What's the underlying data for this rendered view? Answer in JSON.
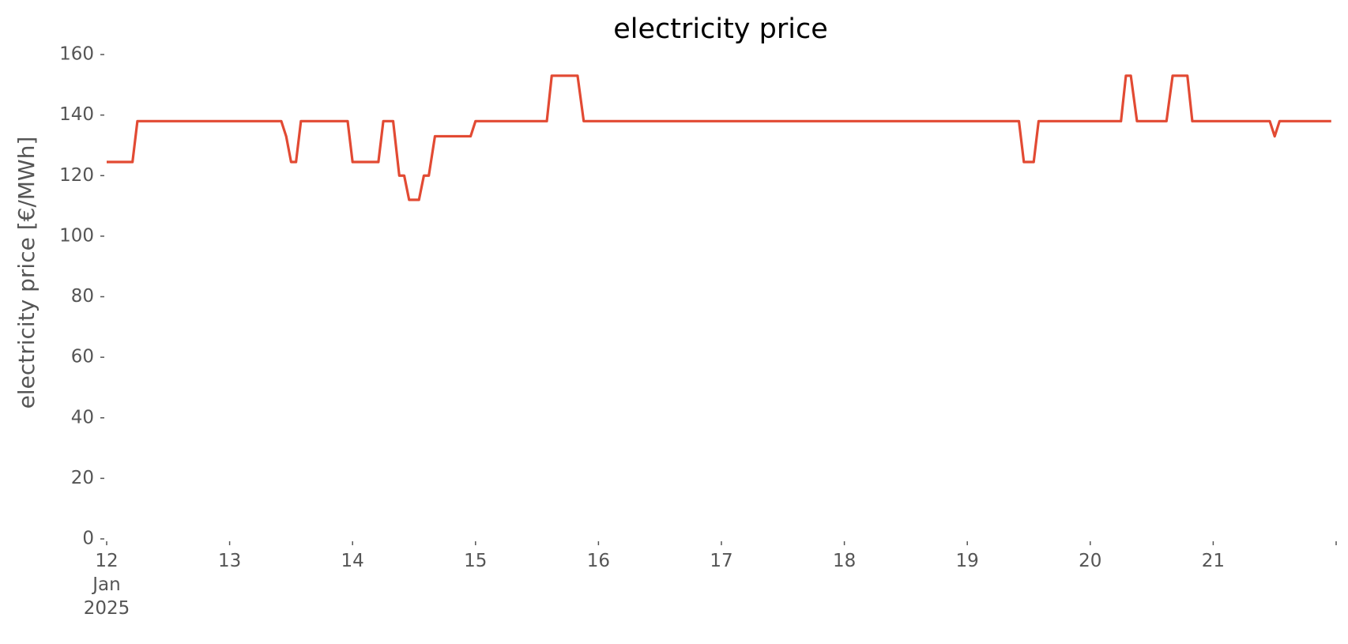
{
  "chart_data": {
    "type": "line",
    "title": "electricity price",
    "ylabel": "electricity price [€/MWh]",
    "x": [
      12.0,
      12.21,
      12.25,
      13.42,
      13.46,
      13.5,
      13.54,
      13.58,
      13.96,
      14.0,
      14.21,
      14.25,
      14.33,
      14.38,
      14.42,
      14.46,
      14.54,
      14.58,
      14.62,
      14.67,
      14.96,
      15.0,
      15.58,
      15.62,
      15.83,
      15.88,
      19.42,
      19.46,
      19.54,
      19.58,
      20.25,
      20.29,
      20.33,
      20.38,
      20.62,
      20.67,
      20.79,
      20.83,
      21.46,
      21.5,
      21.54,
      21.96
    ],
    "series": [
      {
        "color": "#e24a33",
        "values": [
          124.5,
          124.5,
          138,
          138,
          133,
          124.5,
          124.5,
          138,
          138,
          124.5,
          124.5,
          138,
          138,
          120,
          120,
          112,
          112,
          120,
          120,
          133,
          133,
          138,
          138,
          153,
          153,
          138,
          138,
          124.5,
          124.5,
          138,
          138,
          153,
          153,
          138,
          138,
          153,
          153,
          138,
          138,
          133,
          138,
          138
        ]
      }
    ],
    "xlim": [
      12,
      22
    ],
    "xticks": [
      {
        "value": 12,
        "label": "12\nJan\n2025"
      },
      13,
      14,
      15,
      16,
      17,
      18,
      19,
      20,
      21,
      {
        "value": 22,
        "label": null
      }
    ],
    "ylim": [
      0,
      160
    ],
    "yticks": [
      0,
      20,
      40,
      60,
      80,
      100,
      120,
      140,
      160
    ],
    "grid": false
  }
}
